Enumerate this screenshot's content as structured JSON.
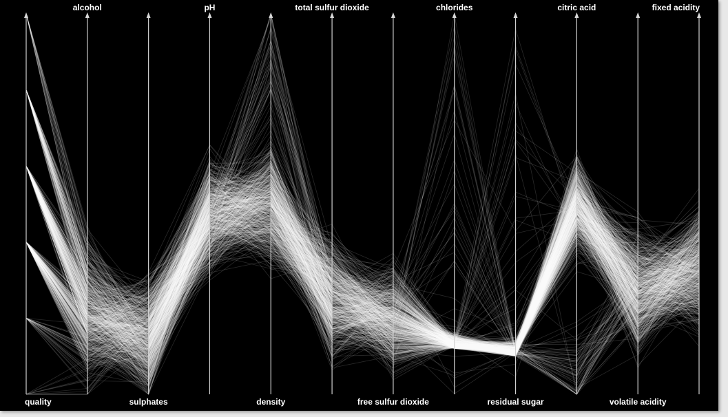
{
  "chart_data": {
    "type": "parallel_coordinates",
    "title": "",
    "background_color": "#000000",
    "line_color": "#ffffff",
    "axis_color": "#d0d0d0",
    "dimensions": [
      {
        "name": "quality",
        "label_position": "bottom"
      },
      {
        "name": "alcohol",
        "label_position": "top"
      },
      {
        "name": "sulphates",
        "label_position": "bottom"
      },
      {
        "name": "pH",
        "label_position": "top"
      },
      {
        "name": "density",
        "label_position": "bottom"
      },
      {
        "name": "total sulfur dioxide",
        "label_position": "top"
      },
      {
        "name": "free sulfur dioxide",
        "label_position": "bottom"
      },
      {
        "name": "chlorides",
        "label_position": "top"
      },
      {
        "name": "residual sugar",
        "label_position": "bottom"
      },
      {
        "name": "citric acid",
        "label_position": "top"
      },
      {
        "name": "volatile acidity",
        "label_position": "bottom"
      },
      {
        "name": "fixed acidity",
        "label_position": "top"
      }
    ],
    "quality_levels": [
      0,
      0.2,
      0.4,
      0.6,
      0.8,
      1.0
    ],
    "normalized_centers": {
      "alcohol": 0.2,
      "sulphates": 0.15,
      "pH": 0.47,
      "density": 0.5,
      "total sulfur dioxide": 0.25,
      "free sulfur dioxide": 0.2,
      "chlorides": 0.12,
      "residual sugar": 0.1,
      "citric acid": 0.5,
      "volatile acidity": 0.27,
      "fixed acidity": 0.33
    },
    "sample_count": 700
  }
}
